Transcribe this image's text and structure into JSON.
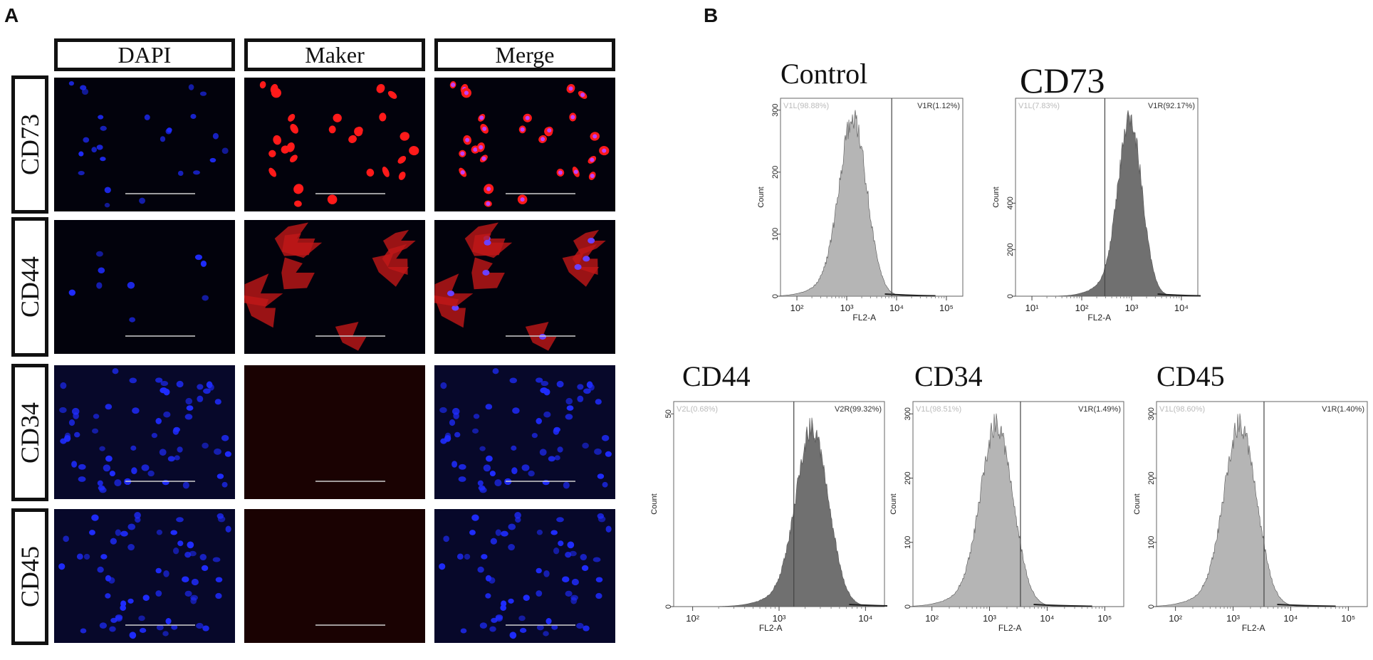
{
  "panels": {
    "a": "A",
    "b": "B"
  },
  "microscopy": {
    "columns": [
      "DAPI",
      "Maker",
      "Merge"
    ],
    "rows": [
      "CD73",
      "CD44",
      "CD34",
      "CD45"
    ]
  },
  "colors": {
    "nuclei": "#1f2cff",
    "marker": "#ff1a1a",
    "fill_light": "#b5b5b5",
    "fill_dark": "#707070"
  },
  "flow": {
    "control": {
      "title": "Control",
      "gate_left": "V1L(98.88%)",
      "gate_right": "V1R(1.12%)",
      "xlabel": "FL2-A",
      "ylabel": "Count",
      "xticks": [
        "10²",
        "10³",
        "10⁴",
        "10⁵"
      ],
      "yticks": [
        "0",
        "100",
        "200",
        "300"
      ]
    },
    "cd73": {
      "title": "CD73",
      "gate_left": "V1L(7.83%)",
      "gate_right": "V1R(92.17%)",
      "xlabel": "FL2-A",
      "ylabel": "Count",
      "xticks": [
        "10¹",
        "10²",
        "10³",
        "10⁴"
      ],
      "yticks": [
        "0",
        "200",
        "400"
      ]
    },
    "cd44": {
      "title": "CD44",
      "gate_left": "V2L(0.68%)",
      "gate_right": "V2R(99.32%)",
      "xlabel": "FL2-A",
      "ylabel": "Count",
      "xticks": [
        "10²",
        "10³",
        "10⁴"
      ],
      "yticks": [
        "0",
        "50"
      ]
    },
    "cd34": {
      "title": "CD34",
      "gate_left": "V1L(98.51%)",
      "gate_right": "V1R(1.49%)",
      "xlabel": "FL2-A",
      "ylabel": "Count",
      "xticks": [
        "10²",
        "10³",
        "10⁴",
        "10⁵"
      ],
      "yticks": [
        "0",
        "100",
        "200",
        "300"
      ]
    },
    "cd45": {
      "title": "CD45",
      "gate_left": "V1L(98.60%)",
      "gate_right": "V1R(1.40%)",
      "xlabel": "FL2-A",
      "ylabel": "Count",
      "xticks": [
        "10²",
        "10³",
        "10⁴",
        "10⁵"
      ],
      "yticks": [
        "0",
        "100",
        "200",
        "300"
      ]
    }
  }
}
